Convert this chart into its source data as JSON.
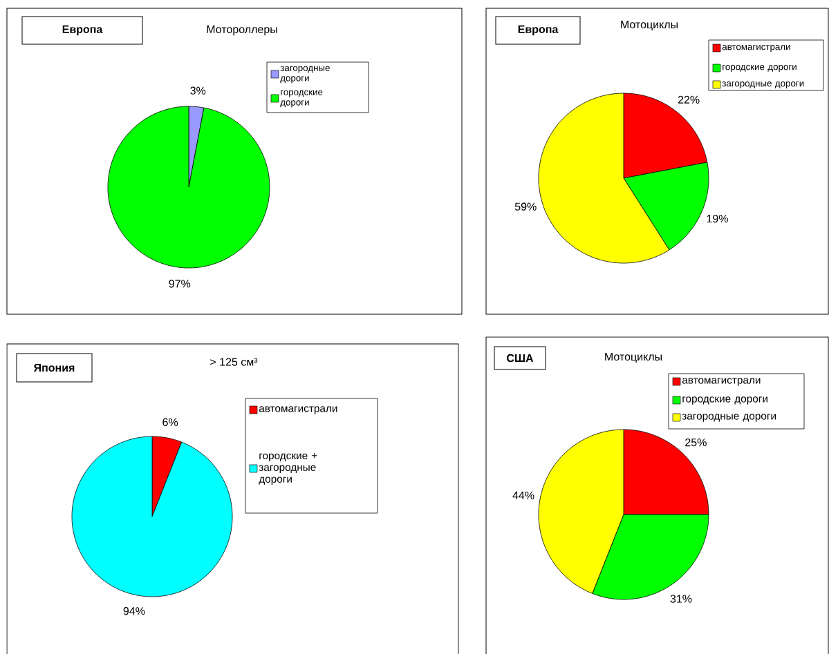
{
  "chart_data": [
    {
      "type": "pie",
      "title": "Европа",
      "subtitle": "Мотороллеры",
      "categories": [
        "загородные дороги",
        "городские дороги"
      ],
      "values": [
        3,
        97
      ],
      "colors": [
        "#9999ff",
        "#00ff00"
      ],
      "value_labels": [
        "3%",
        "97%"
      ],
      "legend": "top right"
    },
    {
      "type": "pie",
      "title": "Европа",
      "subtitle": "Мотоциклы",
      "categories": [
        "автомагистрали",
        "городские дороги",
        "загородные дороги"
      ],
      "values": [
        22,
        19,
        59
      ],
      "colors": [
        "#ff0000",
        "#00ff00",
        "#ffff00"
      ],
      "value_labels": [
        "22%",
        "19%",
        "59%"
      ],
      "legend": "top right"
    },
    {
      "type": "pie",
      "title": "Япония",
      "subtitle": "> 125 см³",
      "categories": [
        "автомагистрали",
        "городские + загородные дороги"
      ],
      "values": [
        6,
        94
      ],
      "colors": [
        "#ff0000",
        "#00ffff"
      ],
      "value_labels": [
        "6%",
        "94%"
      ],
      "legend": "top right"
    },
    {
      "type": "pie",
      "title": "США",
      "subtitle": "Мотоциклы",
      "categories": [
        "автомагистрали",
        "городские дороги",
        "загородные дороги"
      ],
      "values": [
        25,
        31,
        44
      ],
      "colors": [
        "#ff0000",
        "#00ff00",
        "#ffff00"
      ],
      "value_labels": [
        "25%",
        "31%",
        "44%"
      ],
      "legend": "top right"
    }
  ]
}
